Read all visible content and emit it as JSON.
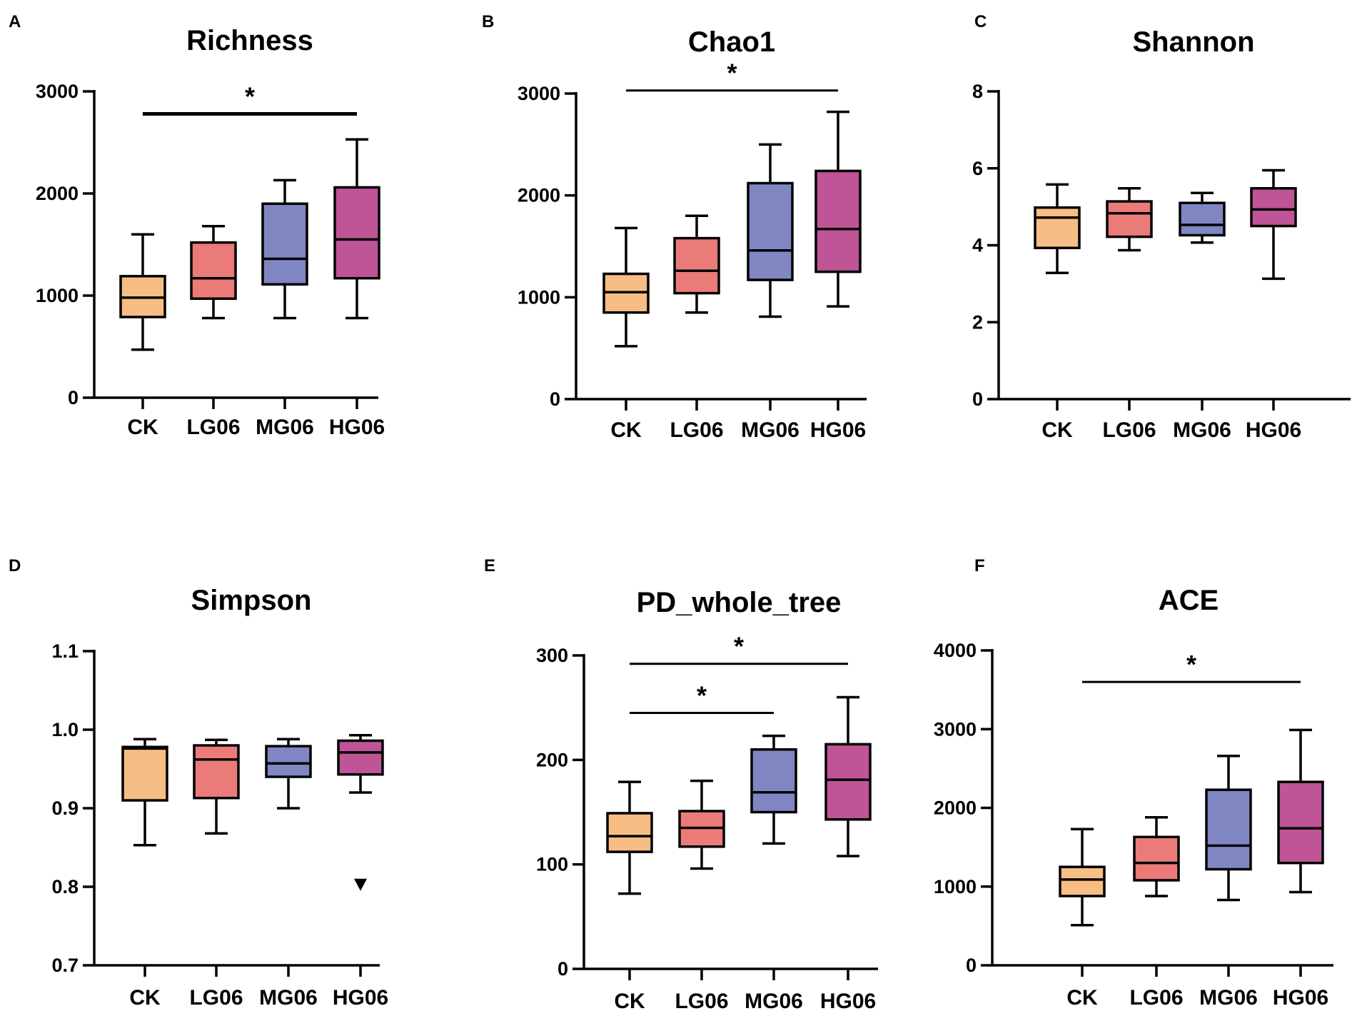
{
  "colors": {
    "CK": "#f6bd84",
    "LG06": "#eb7b78",
    "MG06": "#7f86c2",
    "HG06": "#bf5496",
    "stroke": "#000000"
  },
  "chart_data": [
    {
      "panel": "A",
      "type": "box",
      "title": "Richness",
      "categories": [
        "CK",
        "LG06",
        "MG06",
        "HG06"
      ],
      "yticks": [
        0,
        1000,
        2000,
        3000
      ],
      "ytick_labels": [
        "0",
        "1000",
        "2000",
        "3000"
      ],
      "ylim": [
        0,
        3000
      ],
      "boxes": [
        {
          "group": "CK",
          "min": 470,
          "q1": 790,
          "median": 980,
          "q3": 1190,
          "max": 1600
        },
        {
          "group": "LG06",
          "min": 780,
          "q1": 970,
          "median": 1170,
          "q3": 1520,
          "max": 1680
        },
        {
          "group": "MG06",
          "min": 780,
          "q1": 1110,
          "median": 1360,
          "q3": 1900,
          "max": 2130
        },
        {
          "group": "HG06",
          "min": 780,
          "q1": 1170,
          "median": 1550,
          "q3": 2060,
          "max": 2530
        }
      ],
      "outliers": [],
      "significance": [
        {
          "from": "CK",
          "to": "HG06",
          "y": 2780,
          "label": "*"
        }
      ]
    },
    {
      "panel": "B",
      "type": "box",
      "title": "Chao1",
      "categories": [
        "CK",
        "LG06",
        "MG06",
        "HG06"
      ],
      "yticks": [
        0,
        1000,
        2000,
        3000
      ],
      "ytick_labels": [
        "0",
        "1000",
        "2000",
        "3000"
      ],
      "ylim": [
        0,
        3000
      ],
      "boxes": [
        {
          "group": "CK",
          "min": 520,
          "q1": 850,
          "median": 1050,
          "q3": 1230,
          "max": 1680
        },
        {
          "group": "LG06",
          "min": 850,
          "q1": 1040,
          "median": 1260,
          "q3": 1580,
          "max": 1800
        },
        {
          "group": "MG06",
          "min": 810,
          "q1": 1170,
          "median": 1460,
          "q3": 2120,
          "max": 2500
        },
        {
          "group": "HG06",
          "min": 910,
          "q1": 1250,
          "median": 1670,
          "q3": 2240,
          "max": 2820
        }
      ],
      "outliers": [],
      "significance": [
        {
          "from": "CK",
          "to": "HG06",
          "y": 3030,
          "label": "*"
        }
      ]
    },
    {
      "panel": "C",
      "type": "box",
      "title": "Shannon",
      "categories": [
        "CK",
        "LG06",
        "MG06",
        "HG06"
      ],
      "yticks": [
        0,
        2,
        4,
        6,
        8
      ],
      "ytick_labels": [
        "0",
        "2",
        "4",
        "6",
        "8"
      ],
      "ylim": [
        0,
        8
      ],
      "boxes": [
        {
          "group": "CK",
          "min": 3.28,
          "q1": 3.93,
          "median": 4.72,
          "q3": 4.98,
          "max": 5.58
        },
        {
          "group": "LG06",
          "min": 3.87,
          "q1": 4.22,
          "median": 4.83,
          "q3": 5.14,
          "max": 5.48
        },
        {
          "group": "MG06",
          "min": 4.07,
          "q1": 4.26,
          "median": 4.53,
          "q3": 5.1,
          "max": 5.36
        },
        {
          "group": "HG06",
          "min": 3.13,
          "q1": 4.5,
          "median": 4.93,
          "q3": 5.48,
          "max": 5.95
        }
      ],
      "outliers": [],
      "significance": []
    },
    {
      "panel": "D",
      "type": "box",
      "title": "Simpson",
      "categories": [
        "CK",
        "LG06",
        "MG06",
        "HG06"
      ],
      "yticks": [
        0.7,
        0.8,
        0.9,
        1.0,
        1.1
      ],
      "ytick_labels": [
        "0.7",
        "0.8",
        "0.9",
        "1.0",
        "1.1"
      ],
      "ylim": [
        0.7,
        1.1
      ],
      "boxes": [
        {
          "group": "CK",
          "min": 0.853,
          "q1": 0.91,
          "median": 0.976,
          "q3": 0.978,
          "max": 0.988
        },
        {
          "group": "LG06",
          "min": 0.868,
          "q1": 0.913,
          "median": 0.962,
          "q3": 0.98,
          "max": 0.987
        },
        {
          "group": "MG06",
          "min": 0.9,
          "q1": 0.94,
          "median": 0.957,
          "q3": 0.979,
          "max": 0.988
        },
        {
          "group": "HG06",
          "min": 0.92,
          "q1": 0.943,
          "median": 0.971,
          "q3": 0.986,
          "max": 0.993
        }
      ],
      "outliers": [
        {
          "group": "HG06",
          "value": 0.802,
          "marker": "triangle-down"
        }
      ],
      "significance": []
    },
    {
      "panel": "E",
      "type": "box",
      "title": "PD_whole_tree",
      "categories": [
        "CK",
        "LG06",
        "MG06",
        "HG06"
      ],
      "yticks": [
        0,
        100,
        200,
        300
      ],
      "ytick_labels": [
        "0",
        "100",
        "200",
        "300"
      ],
      "ylim": [
        0,
        300
      ],
      "boxes": [
        {
          "group": "CK",
          "min": 72,
          "q1": 112,
          "median": 127,
          "q3": 149,
          "max": 179
        },
        {
          "group": "LG06",
          "min": 96,
          "q1": 117,
          "median": 135,
          "q3": 151,
          "max": 180
        },
        {
          "group": "MG06",
          "min": 120,
          "q1": 150,
          "median": 169,
          "q3": 210,
          "max": 223
        },
        {
          "group": "HG06",
          "min": 108,
          "q1": 143,
          "median": 181,
          "q3": 215,
          "max": 260
        }
      ],
      "outliers": [],
      "significance": [
        {
          "from": "CK",
          "to": "HG06",
          "y": 292,
          "label": "*"
        },
        {
          "from": "CK",
          "to": "MG06",
          "y": 245,
          "label": "*"
        }
      ]
    },
    {
      "panel": "F",
      "type": "box",
      "title": "ACE",
      "categories": [
        "CK",
        "LG06",
        "MG06",
        "HG06"
      ],
      "yticks": [
        0,
        1000,
        2000,
        3000,
        4000
      ],
      "ytick_labels": [
        "0",
        "1000",
        "2000",
        "3000",
        "4000"
      ],
      "ylim": [
        0,
        4000
      ],
      "boxes": [
        {
          "group": "CK",
          "min": 510,
          "q1": 880,
          "median": 1090,
          "q3": 1250,
          "max": 1730
        },
        {
          "group": "LG06",
          "min": 880,
          "q1": 1080,
          "median": 1300,
          "q3": 1630,
          "max": 1880
        },
        {
          "group": "MG06",
          "min": 830,
          "q1": 1220,
          "median": 1520,
          "q3": 2230,
          "max": 2660
        },
        {
          "group": "HG06",
          "min": 930,
          "q1": 1300,
          "median": 1740,
          "q3": 2330,
          "max": 2990
        }
      ],
      "outliers": [],
      "significance": [
        {
          "from": "CK",
          "to": "HG06",
          "y": 3600,
          "label": "*"
        }
      ]
    }
  ]
}
